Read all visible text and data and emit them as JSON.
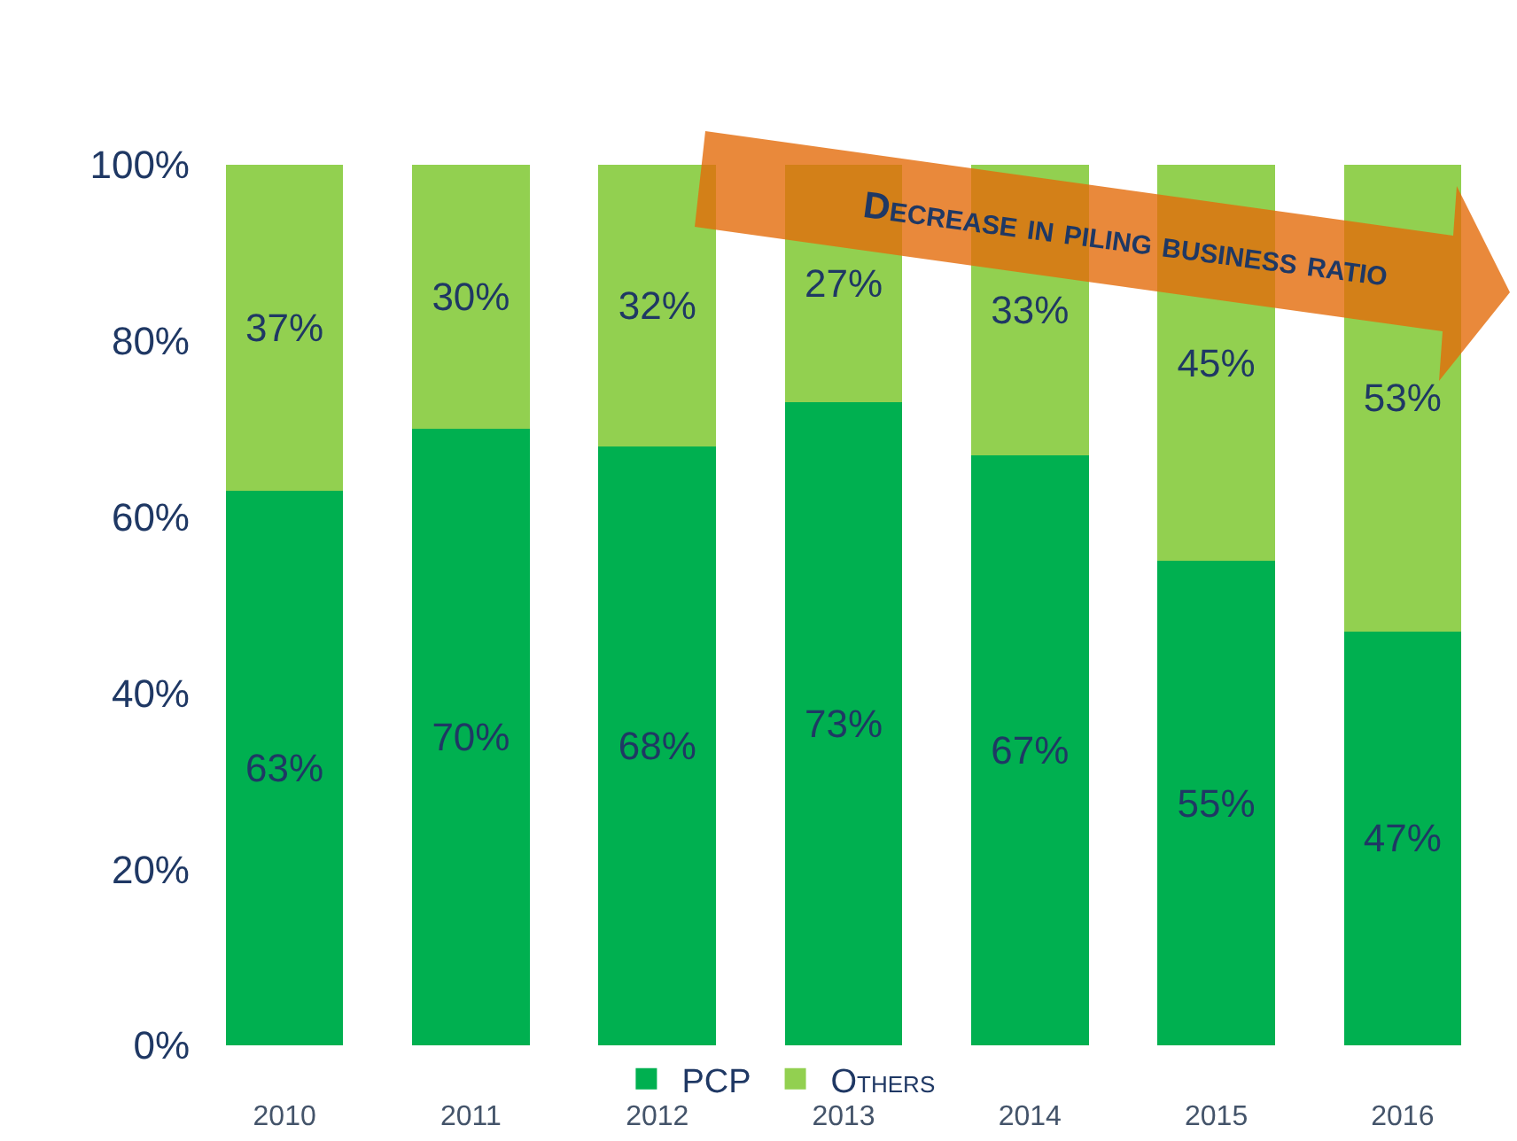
{
  "chart_data": {
    "type": "bar",
    "stacked": true,
    "categories": [
      "2010",
      "2011",
      "2012",
      "2013",
      "2014",
      "2015",
      "2016"
    ],
    "series": [
      {
        "name": "PCP",
        "color": "#00b050",
        "values": [
          63,
          70,
          68,
          73,
          67,
          55,
          47
        ],
        "value_labels": [
          "63%",
          "70%",
          "68%",
          "73%",
          "67%",
          "55%",
          "47%"
        ]
      },
      {
        "name": "Others",
        "color": "#92d050",
        "values": [
          37,
          30,
          32,
          27,
          33,
          45,
          53
        ],
        "value_labels": [
          "37%",
          "30%",
          "32%",
          "27%",
          "33%",
          "45%",
          "53%"
        ]
      }
    ],
    "ylim": [
      0,
      100
    ],
    "yticks": [
      {
        "value": 0,
        "label": "0%"
      },
      {
        "value": 20,
        "label": "20%"
      },
      {
        "value": 40,
        "label": "40%"
      },
      {
        "value": 60,
        "label": "60%"
      },
      {
        "value": 80,
        "label": "80%"
      },
      {
        "value": 100,
        "label": "100%"
      }
    ],
    "grid": false,
    "legend": "bottom",
    "annotations": [
      "Decrease in piling business ratio"
    ]
  }
}
